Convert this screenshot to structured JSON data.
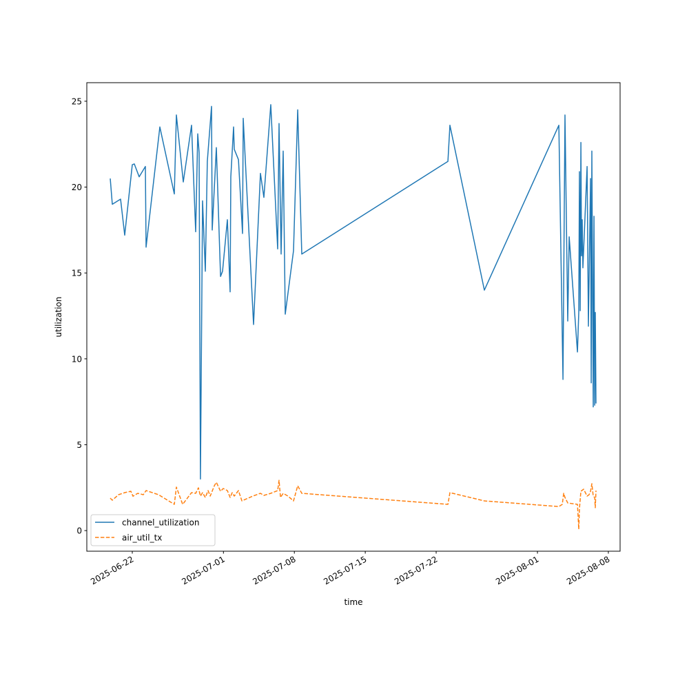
{
  "chart_data": {
    "type": "line",
    "title": "",
    "xlabel": "time",
    "ylabel": "utilization",
    "x_units": "days since 2025-06-22",
    "xlim": [
      -4.49,
      48.16
    ],
    "ylim": [
      -1.2,
      26.08
    ],
    "grid": false,
    "legend_position": "lower-left",
    "x_ticks": [
      {
        "value": 0,
        "label": "2025-06-22"
      },
      {
        "value": 9,
        "label": "2025-07-01"
      },
      {
        "value": 16,
        "label": "2025-07-08"
      },
      {
        "value": 23,
        "label": "2025-07-15"
      },
      {
        "value": 30,
        "label": "2025-07-22"
      },
      {
        "value": 40,
        "label": "2025-08-01"
      },
      {
        "value": 47,
        "label": "2025-08-08"
      }
    ],
    "y_ticks": [
      {
        "value": 0,
        "label": "0"
      },
      {
        "value": 5,
        "label": "5"
      },
      {
        "value": 10,
        "label": "10"
      },
      {
        "value": 15,
        "label": "15"
      },
      {
        "value": 20,
        "label": "20"
      },
      {
        "value": 25,
        "label": "25"
      }
    ],
    "series": [
      {
        "name": "channel_utilization",
        "color": "#1f77b4",
        "dash": "solid",
        "x": [
          -2.18,
          -1.97,
          -1.16,
          -0.75,
          0,
          0.2,
          0.68,
          1.29,
          1.36,
          2.72,
          4.15,
          4.35,
          5.03,
          5.85,
          6.26,
          6.46,
          6.6,
          6.73,
          6.94,
          7.21,
          7.41,
          7.82,
          7.89,
          8.3,
          8.71,
          8.91,
          9.39,
          9.66,
          9.73,
          10.0,
          10.07,
          10.48,
          10.88,
          10.95,
          11.97,
          12.65,
          12.99,
          13.67,
          14.35,
          14.49,
          14.69,
          14.9,
          15.1,
          15.92,
          16.33,
          16.73,
          31.16,
          31.36,
          34.76,
          42.11,
          42.52,
          42.72,
          42.99,
          43.13,
          43.95,
          44.08,
          44.15,
          44.22,
          44.29,
          44.35,
          44.42,
          44.49,
          44.9,
          45.03,
          45.24,
          45.31,
          45.37,
          45.51,
          45.58,
          45.65,
          45.71,
          45.78
        ],
        "y": [
          20.5,
          19.0,
          19.3,
          17.2,
          21.3,
          21.35,
          20.6,
          21.2,
          16.5,
          23.5,
          19.6,
          24.2,
          20.3,
          23.6,
          17.4,
          23.1,
          22.0,
          3.0,
          19.2,
          15.1,
          21.5,
          24.7,
          17.5,
          22.3,
          14.8,
          15.1,
          18.1,
          13.9,
          20.6,
          23.5,
          22.2,
          21.6,
          17.3,
          24.0,
          12.0,
          20.8,
          19.4,
          24.8,
          16.4,
          23.7,
          16.1,
          22.1,
          12.6,
          16.3,
          24.5,
          16.1,
          21.5,
          23.6,
          14.0,
          23.6,
          8.8,
          24.2,
          12.2,
          17.1,
          10.4,
          12.7,
          20.9,
          12.8,
          22.6,
          16.0,
          18.1,
          15.3,
          21.2,
          11.9,
          20.5,
          8.6,
          22.1,
          7.2,
          18.3,
          7.3,
          12.7,
          7.4
        ]
      },
      {
        "name": "air_util_tx",
        "color": "#ff7f0e",
        "dash": "dashed",
        "x": [
          -2.18,
          -1.97,
          -1.36,
          -0.75,
          -0.14,
          0.07,
          0.54,
          1.09,
          1.36,
          2.59,
          4.15,
          4.35,
          4.97,
          5.85,
          6.26,
          6.53,
          6.73,
          6.94,
          7.21,
          7.48,
          7.69,
          8.1,
          8.3,
          8.71,
          8.98,
          9.39,
          9.66,
          9.86,
          10.07,
          10.48,
          10.82,
          11.9,
          12.65,
          12.99,
          13.67,
          14.35,
          14.49,
          14.63,
          14.9,
          15.37,
          15.92,
          16.33,
          16.73,
          31.16,
          31.36,
          34.76,
          42.11,
          42.45,
          42.59,
          42.72,
          42.99,
          43.95,
          44.08,
          44.15,
          44.29,
          44.56,
          44.9,
          45.1,
          45.24,
          45.37,
          45.51,
          45.65,
          45.71,
          45.78
        ],
        "y": [
          1.89,
          1.77,
          2.09,
          2.21,
          2.29,
          2.0,
          2.17,
          2.09,
          2.33,
          2.09,
          1.53,
          2.53,
          1.53,
          2.21,
          2.17,
          2.49,
          2.01,
          2.21,
          1.93,
          2.33,
          2.01,
          2.61,
          2.81,
          2.29,
          2.45,
          2.33,
          1.93,
          2.21,
          2.01,
          2.33,
          1.73,
          2.01,
          2.17,
          2.05,
          2.17,
          2.33,
          2.93,
          1.93,
          2.17,
          2.01,
          1.73,
          2.61,
          2.17,
          1.53,
          2.21,
          1.73,
          1.4,
          1.53,
          2.17,
          1.93,
          1.61,
          1.53,
          0.08,
          1.28,
          2.29,
          2.41,
          2.01,
          2.09,
          2.29,
          2.73,
          2.01,
          1.93,
          1.33,
          2.33
        ]
      }
    ]
  }
}
